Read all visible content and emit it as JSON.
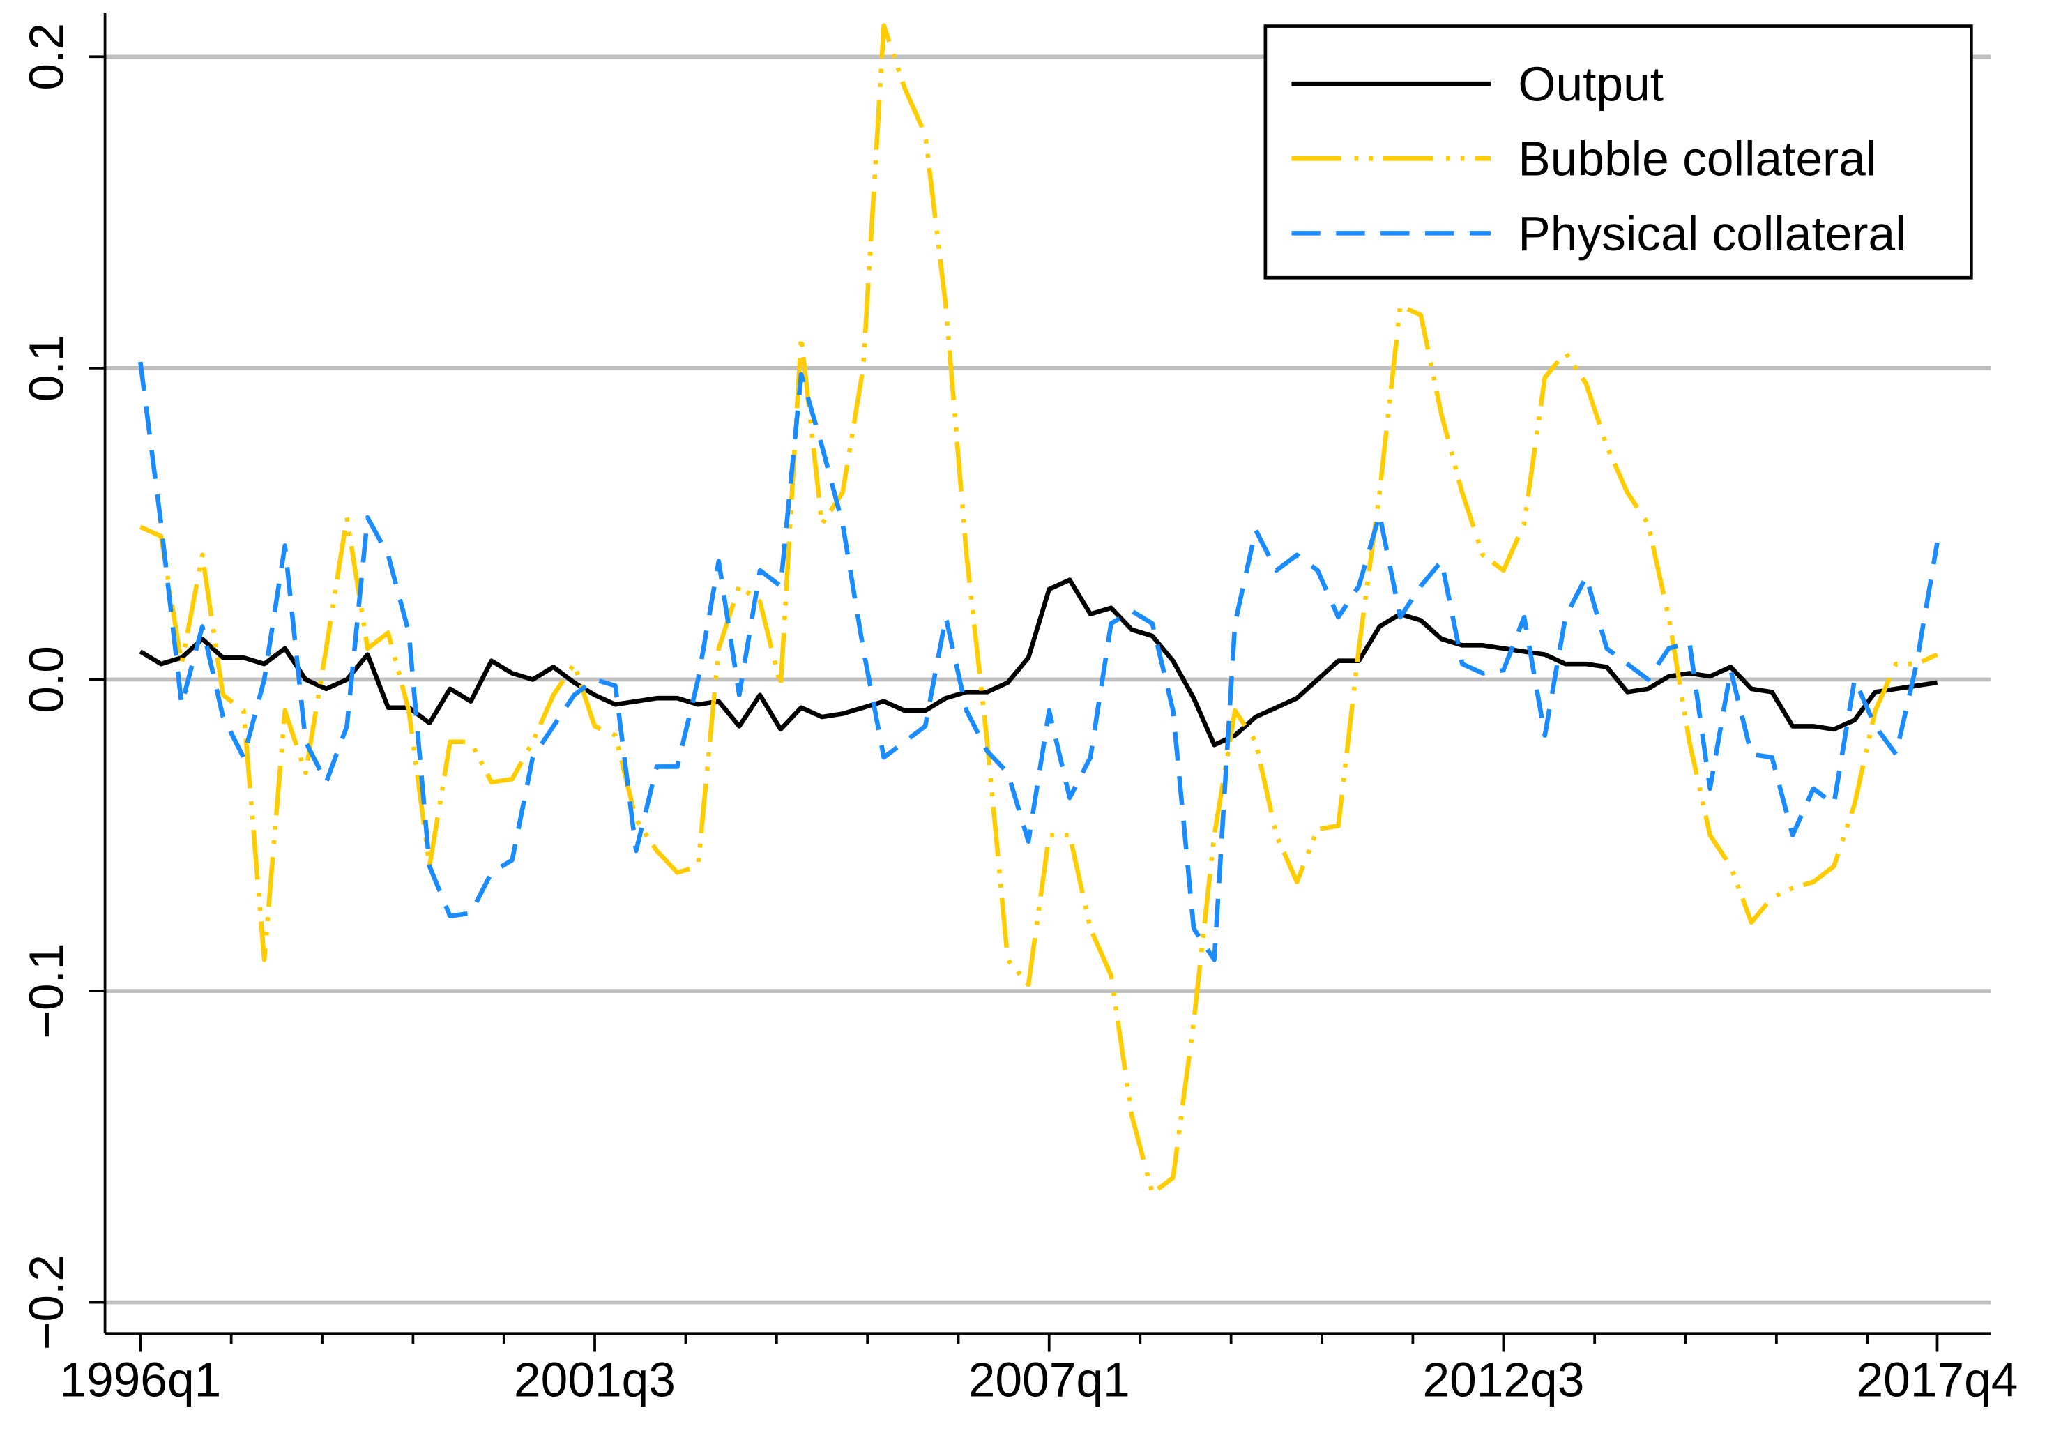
{
  "chart_data": {
    "type": "line",
    "categories": [
      "1996q1",
      null,
      null,
      null,
      null,
      null,
      null,
      null,
      null,
      null,
      null,
      null,
      null,
      null,
      null,
      null,
      null,
      null,
      null,
      null,
      null,
      null,
      "2001q3",
      null,
      null,
      null,
      null,
      null,
      null,
      null,
      null,
      null,
      null,
      null,
      null,
      null,
      null,
      null,
      null,
      null,
      null,
      null,
      null,
      null,
      "2007q1",
      null,
      null,
      null,
      null,
      null,
      null,
      null,
      null,
      null,
      null,
      null,
      null,
      null,
      null,
      null,
      null,
      null,
      null,
      null,
      null,
      null,
      "2012q3",
      null,
      null,
      null,
      null,
      null,
      null,
      null,
      null,
      null,
      null,
      null,
      null,
      null,
      null,
      null,
      null,
      null,
      null,
      null,
      null,
      "2017q4"
    ],
    "series": [
      {
        "name": "Output",
        "color": "#000000",
        "values": [
          0.009,
          0.005,
          0.007,
          0.013,
          0.007,
          0.007,
          0.005,
          0.01,
          0.0,
          -0.003,
          0.0,
          0.008,
          -0.009,
          -0.009,
          -0.014,
          -0.003,
          -0.007,
          0.006,
          0.002,
          0.0,
          0.004,
          -0.001,
          -0.005,
          -0.008,
          -0.007,
          -0.006,
          -0.006,
          -0.008,
          -0.007,
          -0.015,
          -0.005,
          -0.016,
          -0.009,
          -0.012,
          -0.011,
          -0.009,
          -0.007,
          -0.01,
          -0.01,
          -0.006,
          -0.004,
          -0.004,
          -0.001,
          0.007,
          0.029,
          0.032,
          0.021,
          0.023,
          0.016,
          0.014,
          0.006,
          -0.006,
          -0.021,
          -0.018,
          -0.012,
          -0.009,
          -0.006,
          0.0,
          0.006,
          0.006,
          0.017,
          0.021,
          0.019,
          0.013,
          0.011,
          0.011,
          0.01,
          0.009,
          0.008,
          0.005,
          0.005,
          0.004,
          -0.004,
          -0.003,
          0.001,
          0.002,
          0.001,
          0.004,
          -0.003,
          -0.004,
          -0.015,
          -0.015,
          -0.016,
          -0.013,
          -0.004,
          -0.003,
          -0.002,
          -0.001
        ]
      },
      {
        "name": "Bubble collateral",
        "color": "#ffcc00",
        "values": [
          0.049,
          0.046,
          0.005,
          0.04,
          -0.005,
          -0.01,
          -0.09,
          -0.01,
          -0.03,
          0.01,
          0.052,
          0.01,
          0.015,
          -0.01,
          -0.06,
          -0.02,
          -0.02,
          -0.033,
          -0.032,
          -0.02,
          -0.005,
          0.005,
          -0.015,
          -0.018,
          -0.045,
          -0.055,
          -0.062,
          -0.06,
          0.01,
          0.03,
          0.025,
          -0.002,
          0.11,
          0.05,
          0.06,
          0.1,
          0.21,
          0.19,
          0.175,
          0.12,
          0.04,
          -0.02,
          -0.09,
          -0.098,
          -0.05,
          -0.05,
          -0.08,
          -0.095,
          -0.14,
          -0.165,
          -0.16,
          -0.11,
          -0.05,
          -0.01,
          -0.02,
          -0.05,
          -0.065,
          -0.048,
          -0.047,
          0.01,
          0.06,
          0.12,
          0.117,
          0.085,
          0.06,
          0.04,
          0.035,
          0.05,
          0.097,
          0.105,
          0.095,
          0.075,
          0.06,
          0.05,
          0.02,
          -0.02,
          -0.05,
          -0.06,
          -0.078,
          -0.07,
          -0.067,
          -0.065,
          -0.06,
          -0.04,
          -0.01,
          0.005,
          0.005,
          0.008
        ]
      },
      {
        "name": "Physical collateral",
        "color": "#1a8cff",
        "values": [
          0.102,
          0.05,
          -0.008,
          0.017,
          -0.012,
          -0.025,
          0.0,
          0.043,
          -0.02,
          -0.033,
          -0.015,
          0.052,
          0.04,
          0.015,
          -0.06,
          -0.076,
          -0.075,
          -0.062,
          -0.058,
          -0.025,
          -0.015,
          -0.005,
          0.0,
          -0.002,
          -0.055,
          -0.028,
          -0.028,
          0.0,
          0.038,
          -0.005,
          0.035,
          0.03,
          0.098,
          0.075,
          0.05,
          0.01,
          -0.025,
          -0.02,
          -0.015,
          0.02,
          -0.01,
          -0.023,
          -0.03,
          -0.052,
          -0.01,
          -0.038,
          -0.025,
          0.018,
          0.022,
          0.018,
          -0.01,
          -0.08,
          -0.09,
          0.018,
          0.048,
          0.035,
          0.04,
          0.035,
          0.02,
          0.03,
          0.053,
          0.02,
          0.03,
          0.038,
          0.005,
          0.002,
          0.003,
          0.02,
          -0.018,
          0.02,
          0.033,
          0.01,
          0.005,
          0.0,
          0.01,
          0.012,
          -0.035,
          0.003,
          -0.024,
          -0.025,
          -0.05,
          -0.035,
          -0.04,
          0.0,
          -0.015,
          -0.024,
          0.005,
          0.044
        ]
      }
    ],
    "ylim": [
      -0.21,
      0.214
    ],
    "yticks": [
      {
        "value": -0.2,
        "label": "−0.2"
      },
      {
        "value": -0.1,
        "label": "−0.1"
      },
      {
        "value": 0,
        "label": "0.0"
      },
      0.1,
      0.2
    ],
    "grid": true,
    "legend": "upper right"
  }
}
